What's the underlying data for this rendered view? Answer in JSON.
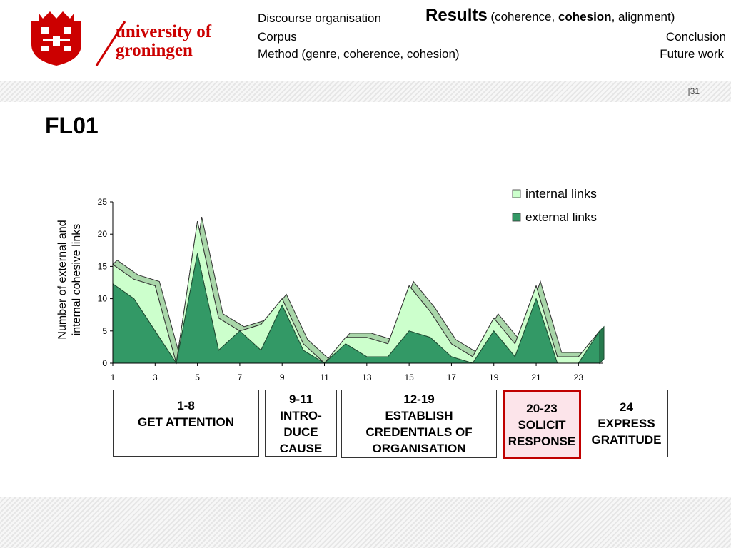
{
  "header": {
    "university_line1": "university of",
    "university_line2": "groningen",
    "nav": {
      "discourse": "Discourse organisation",
      "results": "Results",
      "results_open": " (coherence, ",
      "results_bold": "cohesion",
      "results_close": ", alignment)",
      "corpus": "Corpus",
      "conclusion": "Conclusion",
      "method": "Method (genre, coherence, cohesion)",
      "future": "Future work"
    }
  },
  "page_number": "|31",
  "slide_title": "FL01",
  "chart_data": {
    "type": "area",
    "stacked": true,
    "x": [
      1,
      2,
      3,
      4,
      5,
      6,
      7,
      8,
      9,
      10,
      11,
      12,
      13,
      14,
      15,
      16,
      17,
      18,
      19,
      20,
      21,
      22,
      23,
      24
    ],
    "xticks": [
      "1",
      "3",
      "5",
      "7",
      "9",
      "11",
      "13",
      "15",
      "17",
      "19",
      "21",
      "23"
    ],
    "ylim": [
      0,
      25
    ],
    "yticks": [
      "0",
      "5",
      "10",
      "15",
      "20",
      "25"
    ],
    "ylabel": "Number of external and internal cohesive links",
    "series": [
      {
        "name": "external links",
        "color": "#339966",
        "values": [
          12.3,
          10,
          5,
          0,
          17,
          2,
          5,
          2,
          9,
          2,
          0,
          3,
          1,
          1,
          5,
          4,
          1,
          0,
          5,
          1,
          10,
          0,
          0,
          5
        ]
      },
      {
        "name": "internal links",
        "color": "#ccffcc",
        "values": [
          3,
          3,
          7,
          0,
          5,
          5,
          0,
          4,
          1,
          1,
          0,
          1,
          3,
          2,
          7,
          4,
          2,
          1,
          2,
          2,
          2,
          1,
          1,
          0
        ]
      }
    ],
    "legend": {
      "position": "top-right",
      "order": [
        "internal links",
        "external links"
      ]
    },
    "stages": [
      {
        "range": "1-8",
        "label": "GET ATTENTION",
        "highlight": false
      },
      {
        "range": "9-11",
        "label": "INTRO- DUCE CAUSE",
        "highlight": false
      },
      {
        "range": "12-19",
        "label": "ESTABLISH CREDENTIALS OF ORGANISATION",
        "highlight": false
      },
      {
        "range": "20-23",
        "label": "SOLICIT RESPONSE",
        "highlight": true
      },
      {
        "range": "24",
        "label": "EXPRESS GRATITUDE",
        "highlight": false
      }
    ]
  },
  "stage_lines": {
    "s1": [
      "1-8",
      "GET ATTENTION"
    ],
    "s2": [
      "9-11",
      "INTRO-",
      "DUCE",
      "CAUSE"
    ],
    "s3": [
      "12-19",
      "ESTABLISH",
      "CREDENTIALS OF",
      "ORGANISATION"
    ],
    "s4": [
      "20-23",
      "SOLICIT",
      "RESPONSE"
    ],
    "s5": [
      "24",
      "EXPRESS",
      "GRATITUDE"
    ]
  },
  "colors": {
    "brand_red": "#cc0000",
    "highlight_border": "#c00000",
    "highlight_fill": "#fce4ea"
  }
}
